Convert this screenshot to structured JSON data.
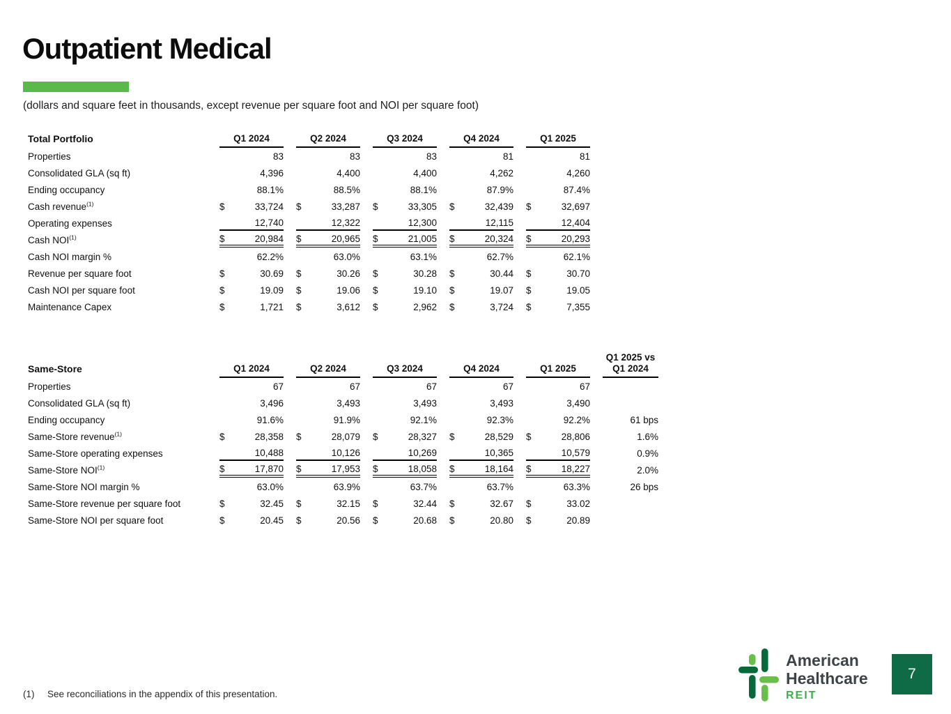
{
  "page": {
    "title": "Outpatient Medical",
    "subtitle": "(dollars and square feet in thousands, except revenue per square foot and NOI per square foot)",
    "accent_color": "#5BB84A",
    "page_number": "7"
  },
  "footnote": {
    "marker": "(1)",
    "text": "See reconciliations in the appendix of this presentation."
  },
  "logo": {
    "name1": "American",
    "name2": "Healthcare",
    "reit": "REIT",
    "light_green": "#6ABF4B",
    "dark_green": "#05693B",
    "reit_green": "#3CB14A",
    "text_color": "#3E4347"
  },
  "tables": {
    "total_portfolio": {
      "title": "Total Portfolio",
      "columns": [
        "Q1 2024",
        "Q2 2024",
        "Q3 2024",
        "Q4 2024",
        "Q1 2025"
      ],
      "rows": [
        {
          "label": "Properties",
          "dollar": false,
          "rule": "none",
          "values": [
            "83",
            "83",
            "83",
            "81",
            "81"
          ]
        },
        {
          "label": "Consolidated GLA (sq ft)",
          "dollar": false,
          "rule": "none",
          "values": [
            "4,396",
            "4,400",
            "4,400",
            "4,262",
            "4,260"
          ]
        },
        {
          "label": "Ending occupancy",
          "dollar": false,
          "rule": "none",
          "values": [
            "88.1%",
            "88.5%",
            "88.1%",
            "87.9%",
            "87.4%"
          ]
        },
        {
          "label": "Cash revenue",
          "sup": "(1)",
          "dollar": true,
          "rule": "none",
          "values": [
            "33,724",
            "33,287",
            "33,305",
            "32,439",
            "32,697"
          ]
        },
        {
          "label": "Operating expenses",
          "dollar": false,
          "rule": "under",
          "values": [
            "12,740",
            "12,322",
            "12,300",
            "12,115",
            "12,404"
          ]
        },
        {
          "label": "Cash NOI",
          "sup": "(1)",
          "dollar": true,
          "rule": "total",
          "values": [
            "20,984",
            "20,965",
            "21,005",
            "20,324",
            "20,293"
          ]
        },
        {
          "label": "Cash NOI margin %",
          "dollar": false,
          "rule": "none",
          "values": [
            "62.2%",
            "63.0%",
            "63.1%",
            "62.7%",
            "62.1%"
          ]
        },
        {
          "label": "Revenue per square foot",
          "dollar": true,
          "rule": "none",
          "values": [
            "30.69",
            "30.26",
            "30.28",
            "30.44",
            "30.70"
          ]
        },
        {
          "label": "Cash NOI per square foot",
          "dollar": true,
          "rule": "none",
          "values": [
            "19.09",
            "19.06",
            "19.10",
            "19.07",
            "19.05"
          ]
        },
        {
          "label": "Maintenance Capex",
          "dollar": true,
          "rule": "none",
          "values": [
            "1,721",
            "3,612",
            "2,962",
            "3,724",
            "7,355"
          ]
        }
      ]
    },
    "same_store": {
      "title": "Same-Store",
      "columns": [
        "Q1 2024",
        "Q2 2024",
        "Q3 2024",
        "Q4 2024",
        "Q1 2025"
      ],
      "compare_header": [
        "Q1 2025 vs",
        "Q1 2024"
      ],
      "rows": [
        {
          "label": "Properties",
          "dollar": false,
          "rule": "none",
          "values": [
            "67",
            "67",
            "67",
            "67",
            "67"
          ],
          "compare": ""
        },
        {
          "label": "Consolidated GLA (sq ft)",
          "dollar": false,
          "rule": "none",
          "values": [
            "3,496",
            "3,493",
            "3,493",
            "3,493",
            "3,490"
          ],
          "compare": ""
        },
        {
          "label": "Ending occupancy",
          "dollar": false,
          "rule": "none",
          "values": [
            "91.6%",
            "91.9%",
            "92.1%",
            "92.3%",
            "92.2%"
          ],
          "compare": "61 bps"
        },
        {
          "label": "Same-Store revenue",
          "sup": "(1)",
          "dollar": true,
          "rule": "none",
          "values": [
            "28,358",
            "28,079",
            "28,327",
            "28,529",
            "28,806"
          ],
          "compare": "1.6%"
        },
        {
          "label": "Same-Store operating expenses",
          "dollar": false,
          "rule": "under",
          "values": [
            "10,488",
            "10,126",
            "10,269",
            "10,365",
            "10,579"
          ],
          "compare": "0.9%"
        },
        {
          "label": "Same-Store NOI",
          "sup": "(1)",
          "dollar": true,
          "rule": "total",
          "values": [
            "17,870",
            "17,953",
            "18,058",
            "18,164",
            "18,227"
          ],
          "compare": "2.0%"
        },
        {
          "label": "Same-Store NOI margin %",
          "dollar": false,
          "rule": "none",
          "values": [
            "63.0%",
            "63.9%",
            "63.7%",
            "63.7%",
            "63.3%"
          ],
          "compare": "26 bps"
        },
        {
          "label": "Same-Store revenue per square foot",
          "dollar": true,
          "rule": "none",
          "values": [
            "32.45",
            "32.15",
            "32.44",
            "32.67",
            "33.02"
          ],
          "compare": ""
        },
        {
          "label": "Same-Store NOI per square foot",
          "dollar": true,
          "rule": "none",
          "values": [
            "20.45",
            "20.56",
            "20.68",
            "20.80",
            "20.89"
          ],
          "compare": ""
        }
      ]
    }
  }
}
